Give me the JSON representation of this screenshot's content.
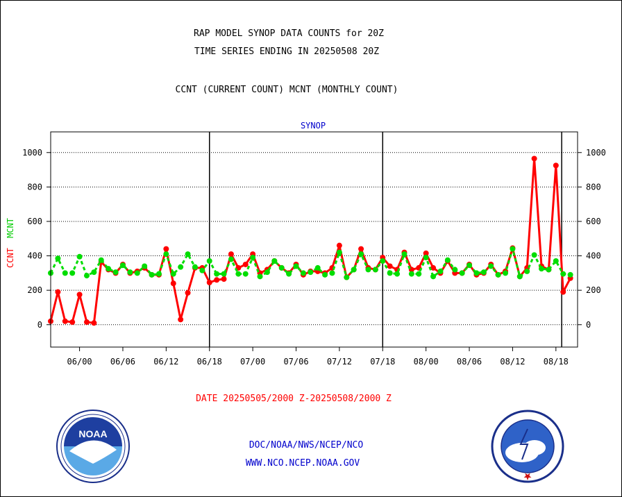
{
  "title_line1": "RAP MODEL SYNOP DATA COUNTS for 20Z",
  "title_line2": "TIME SERIES ENDING IN 20250508 20Z",
  "title_line3": "CCNT (CURRENT COUNT) MCNT (MONTHLY COUNT)",
  "footer_date": "DATE 20250505/2000 Z-20250508/2000 Z",
  "footer_doc": "DOC/NOAA/NWS/NCEP/NCO",
  "footer_www": "WWW.NCO.NCEP.NOAA.GOV",
  "logos": {
    "left": "noaa-logo",
    "right": "national-weather-service-logo"
  },
  "colors": {
    "ccnt": "#ff0000",
    "mcnt": "#00dd00",
    "panel_label": "#0000cc",
    "footer_links": "#0000cc",
    "date_text": "#ff0000"
  },
  "chart_data": {
    "type": "line",
    "panel_label": "SYNOP",
    "ylabel_ccnt": "CCNT",
    "ylabel_mcnt": "MCNT",
    "ylim": [
      -130,
      1120
    ],
    "yticks": [
      0,
      200,
      400,
      600,
      800,
      1000
    ],
    "ytick_labels": [
      "0",
      "200",
      "400",
      "600",
      "800",
      "1000"
    ],
    "grid": true,
    "xlim": [
      0,
      73
    ],
    "xticks": [
      {
        "x": 4,
        "label": "06/00"
      },
      {
        "x": 10,
        "label": "06/06"
      },
      {
        "x": 16,
        "label": "06/12"
      },
      {
        "x": 22,
        "label": "06/18"
      },
      {
        "x": 28,
        "label": "07/00"
      },
      {
        "x": 34,
        "label": "07/06"
      },
      {
        "x": 40,
        "label": "07/12"
      },
      {
        "x": 46,
        "label": "07/18"
      },
      {
        "x": 52,
        "label": "08/00"
      },
      {
        "x": 58,
        "label": "08/06"
      },
      {
        "x": 64,
        "label": "08/12"
      },
      {
        "x": 70,
        "label": "08/18"
      }
    ],
    "day_boundaries": [
      22,
      46,
      70.8
    ],
    "series": [
      {
        "name": "CCNT",
        "values": [
          20,
          190,
          20,
          15,
          175,
          15,
          10,
          365,
          320,
          300,
          350,
          300,
          310,
          330,
          290,
          290,
          440,
          240,
          30,
          185,
          330,
          330,
          245,
          260,
          265,
          410,
          330,
          350,
          410,
          300,
          320,
          370,
          330,
          300,
          350,
          290,
          310,
          310,
          300,
          330,
          460,
          275,
          320,
          440,
          330,
          320,
          390,
          340,
          320,
          420,
          320,
          330,
          415,
          330,
          300,
          370,
          300,
          300,
          350,
          290,
          300,
          350,
          290,
          310,
          445,
          280,
          330,
          965,
          340,
          320,
          925,
          190,
          270
        ]
      },
      {
        "name": "MCNT",
        "values": [
          300,
          385,
          300,
          300,
          395,
          285,
          305,
          375,
          325,
          305,
          345,
          305,
          300,
          340,
          290,
          295,
          410,
          295,
          335,
          410,
          335,
          315,
          370,
          295,
          295,
          380,
          295,
          295,
          390,
          280,
          305,
          370,
          330,
          295,
          340,
          300,
          305,
          330,
          290,
          300,
          420,
          275,
          320,
          410,
          320,
          320,
          370,
          300,
          295,
          410,
          295,
          295,
          390,
          280,
          310,
          375,
          320,
          300,
          345,
          300,
          305,
          340,
          290,
          300,
          440,
          280,
          310,
          405,
          325,
          320,
          370,
          295,
          290
        ]
      }
    ]
  }
}
